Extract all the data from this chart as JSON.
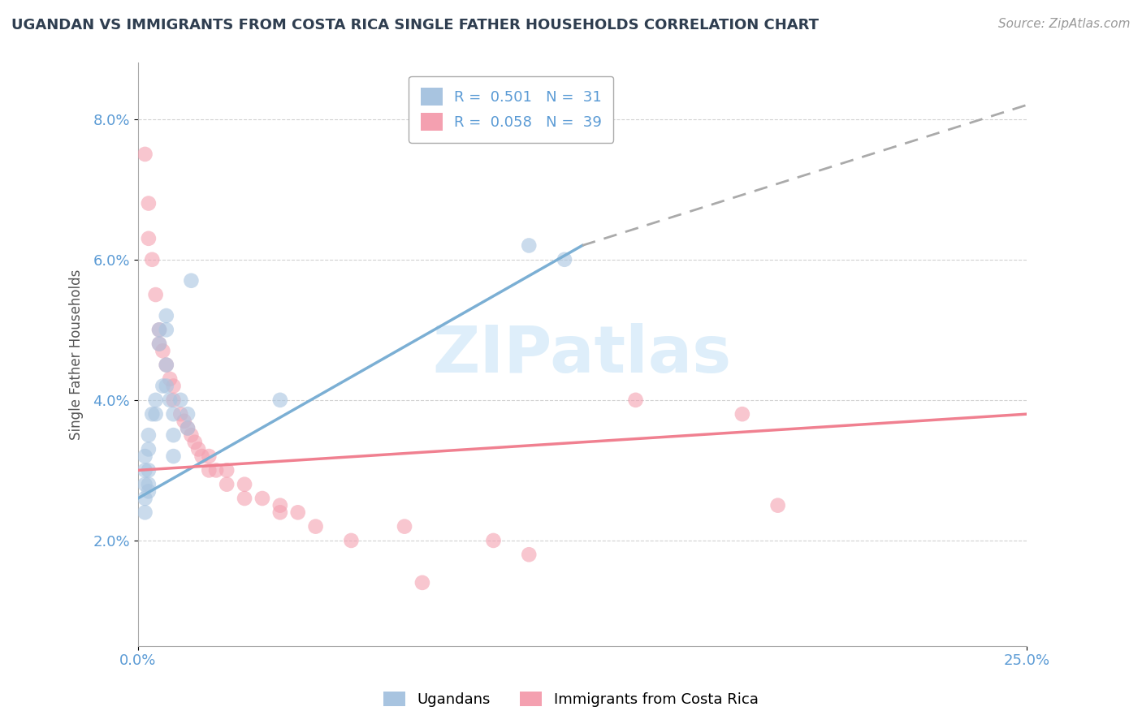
{
  "title": "UGANDAN VS IMMIGRANTS FROM COSTA RICA SINGLE FATHER HOUSEHOLDS CORRELATION CHART",
  "source": "Source: ZipAtlas.com",
  "ylabel": "Single Father Households",
  "xlim": [
    0.0,
    0.25
  ],
  "ylim": [
    0.005,
    0.088
  ],
  "ytick_positions": [
    0.02,
    0.04,
    0.06,
    0.08
  ],
  "xtick_positions": [
    0.0,
    0.25
  ],
  "blue_scatter": [
    [
      0.002,
      0.032
    ],
    [
      0.002,
      0.03
    ],
    [
      0.002,
      0.028
    ],
    [
      0.002,
      0.026
    ],
    [
      0.002,
      0.024
    ],
    [
      0.003,
      0.035
    ],
    [
      0.003,
      0.033
    ],
    [
      0.003,
      0.03
    ],
    [
      0.003,
      0.028
    ],
    [
      0.003,
      0.027
    ],
    [
      0.004,
      0.038
    ],
    [
      0.005,
      0.04
    ],
    [
      0.005,
      0.038
    ],
    [
      0.006,
      0.05
    ],
    [
      0.006,
      0.048
    ],
    [
      0.007,
      0.042
    ],
    [
      0.008,
      0.052
    ],
    [
      0.008,
      0.05
    ],
    [
      0.008,
      0.045
    ],
    [
      0.008,
      0.042
    ],
    [
      0.009,
      0.04
    ],
    [
      0.01,
      0.038
    ],
    [
      0.01,
      0.035
    ],
    [
      0.01,
      0.032
    ],
    [
      0.012,
      0.04
    ],
    [
      0.014,
      0.038
    ],
    [
      0.014,
      0.036
    ],
    [
      0.015,
      0.057
    ],
    [
      0.04,
      0.04
    ],
    [
      0.11,
      0.062
    ],
    [
      0.12,
      0.06
    ]
  ],
  "pink_scatter": [
    [
      0.002,
      0.075
    ],
    [
      0.003,
      0.068
    ],
    [
      0.003,
      0.063
    ],
    [
      0.004,
      0.06
    ],
    [
      0.005,
      0.055
    ],
    [
      0.006,
      0.05
    ],
    [
      0.006,
      0.048
    ],
    [
      0.007,
      0.047
    ],
    [
      0.008,
      0.045
    ],
    [
      0.009,
      0.043
    ],
    [
      0.01,
      0.042
    ],
    [
      0.01,
      0.04
    ],
    [
      0.012,
      0.038
    ],
    [
      0.013,
      0.037
    ],
    [
      0.014,
      0.036
    ],
    [
      0.015,
      0.035
    ],
    [
      0.016,
      0.034
    ],
    [
      0.017,
      0.033
    ],
    [
      0.018,
      0.032
    ],
    [
      0.02,
      0.032
    ],
    [
      0.02,
      0.03
    ],
    [
      0.022,
      0.03
    ],
    [
      0.025,
      0.03
    ],
    [
      0.025,
      0.028
    ],
    [
      0.03,
      0.028
    ],
    [
      0.03,
      0.026
    ],
    [
      0.035,
      0.026
    ],
    [
      0.04,
      0.025
    ],
    [
      0.04,
      0.024
    ],
    [
      0.045,
      0.024
    ],
    [
      0.05,
      0.022
    ],
    [
      0.06,
      0.02
    ],
    [
      0.075,
      0.022
    ],
    [
      0.08,
      0.014
    ],
    [
      0.1,
      0.02
    ],
    [
      0.11,
      0.018
    ],
    [
      0.14,
      0.04
    ],
    [
      0.17,
      0.038
    ],
    [
      0.18,
      0.025
    ]
  ],
  "blue_line_points": [
    [
      0.0,
      0.026
    ],
    [
      0.125,
      0.062
    ]
  ],
  "blue_dash_points": [
    [
      0.125,
      0.062
    ],
    [
      0.25,
      0.082
    ]
  ],
  "pink_line_points": [
    [
      0.0,
      0.03
    ],
    [
      0.25,
      0.038
    ]
  ],
  "blue_color": "#7bafd4",
  "pink_color": "#f08090",
  "blue_scatter_color": "#a8c4e0",
  "pink_scatter_color": "#f4a0b0",
  "dash_color": "#aaaaaa",
  "watermark_color": "#d0e8f8",
  "background_color": "#ffffff",
  "grid_color": "#cccccc",
  "title_fontsize": 13,
  "axis_tick_color": "#5b9bd5",
  "ylabel_color": "#555555"
}
